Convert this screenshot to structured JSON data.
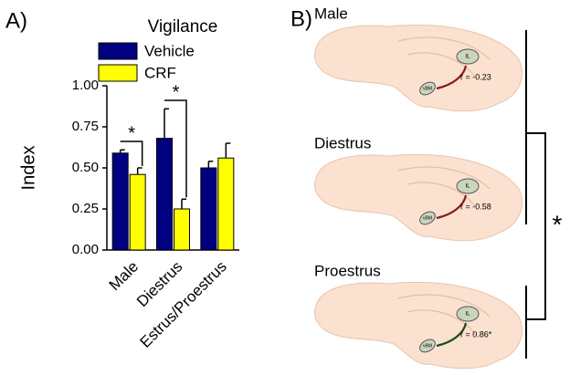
{
  "chart_data": {
    "type": "bar",
    "panel_label": "A)",
    "title": "Vigilance",
    "y_label": "Index",
    "categories": [
      "Male",
      "Diestrus",
      "Estrus/Proestrus"
    ],
    "series": [
      {
        "name": "Vehicle",
        "color": "#000080",
        "values": [
          0.59,
          0.68,
          0.5
        ],
        "errors": [
          0.02,
          0.18,
          0.04
        ]
      },
      {
        "name": "CRF",
        "color": "#ffff00",
        "values": [
          0.46,
          0.25,
          0.56
        ],
        "errors": [
          0.04,
          0.06,
          0.09
        ]
      }
    ],
    "ylim": [
      0,
      1
    ],
    "yticks": [
      {
        "value": 0,
        "label": "0.00"
      },
      {
        "value": 0.25,
        "label": "0.25"
      },
      {
        "value": 0.5,
        "label": "0.50"
      },
      {
        "value": 0.75,
        "label": "0.75"
      },
      {
        "value": 1,
        "label": "1.00"
      }
    ],
    "annotations": [
      "*",
      "*"
    ]
  },
  "panel_b": {
    "label": "B)",
    "significance": "*",
    "rows": [
      {
        "title": "Male",
        "region_a": "IL",
        "region_b": "vBM",
        "r": "r = -0.23"
      },
      {
        "title": "Diestrus",
        "region_a": "IL",
        "region_b": "vBM",
        "r": "r = -0.58"
      },
      {
        "title": "Proestrus",
        "region_a": "IL",
        "region_b": "vBM",
        "r": "r = 0.86*"
      }
    ]
  }
}
